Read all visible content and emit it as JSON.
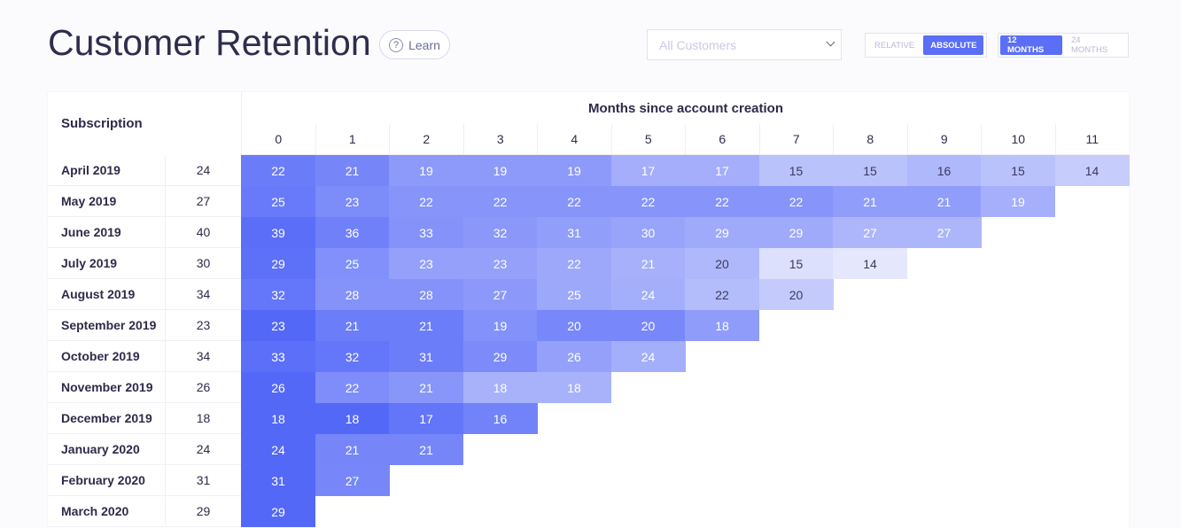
{
  "header": {
    "title": "Customer Retention",
    "learn_button": "Learn"
  },
  "controls": {
    "filter_placeholder": "All Customers",
    "mode_options": [
      "RELATIVE",
      "ABSOLUTE"
    ],
    "range_options": [
      "12 MONTHS",
      "24 MONTHS"
    ]
  },
  "table": {
    "row_header": "Subscription",
    "column_group_header": "Months since account creation",
    "columns": [
      0,
      1,
      2,
      3,
      4,
      5,
      6,
      7,
      8,
      9,
      10,
      11
    ],
    "rows": [
      {
        "cohort": "April 2019",
        "size": 24,
        "values": [
          22,
          21,
          19,
          19,
          19,
          17,
          17,
          15,
          15,
          16,
          15,
          14
        ]
      },
      {
        "cohort": "May 2019",
        "size": 27,
        "values": [
          25,
          23,
          22,
          22,
          22,
          22,
          22,
          22,
          21,
          21,
          19
        ]
      },
      {
        "cohort": "June 2019",
        "size": 40,
        "values": [
          39,
          36,
          33,
          32,
          31,
          30,
          29,
          29,
          27,
          27
        ]
      },
      {
        "cohort": "July 2019",
        "size": 30,
        "values": [
          29,
          25,
          23,
          23,
          22,
          21,
          20,
          15,
          14
        ]
      },
      {
        "cohort": "August 2019",
        "size": 34,
        "values": [
          32,
          28,
          28,
          27,
          25,
          24,
          22,
          20
        ]
      },
      {
        "cohort": "September 2019",
        "size": 23,
        "values": [
          23,
          21,
          21,
          19,
          20,
          20,
          18
        ]
      },
      {
        "cohort": "October 2019",
        "size": 34,
        "values": [
          33,
          32,
          31,
          29,
          26,
          24
        ]
      },
      {
        "cohort": "November 2019",
        "size": 26,
        "values": [
          26,
          22,
          21,
          18,
          18
        ]
      },
      {
        "cohort": "December 2019",
        "size": 18,
        "values": [
          18,
          18,
          17,
          16
        ]
      },
      {
        "cohort": "January 2020",
        "size": 24,
        "values": [
          24,
          21,
          21
        ]
      },
      {
        "cohort": "February 2020",
        "size": 31,
        "values": [
          31,
          27
        ]
      },
      {
        "cohort": "March 2020",
        "size": 29,
        "values": [
          29
        ]
      }
    ]
  }
}
